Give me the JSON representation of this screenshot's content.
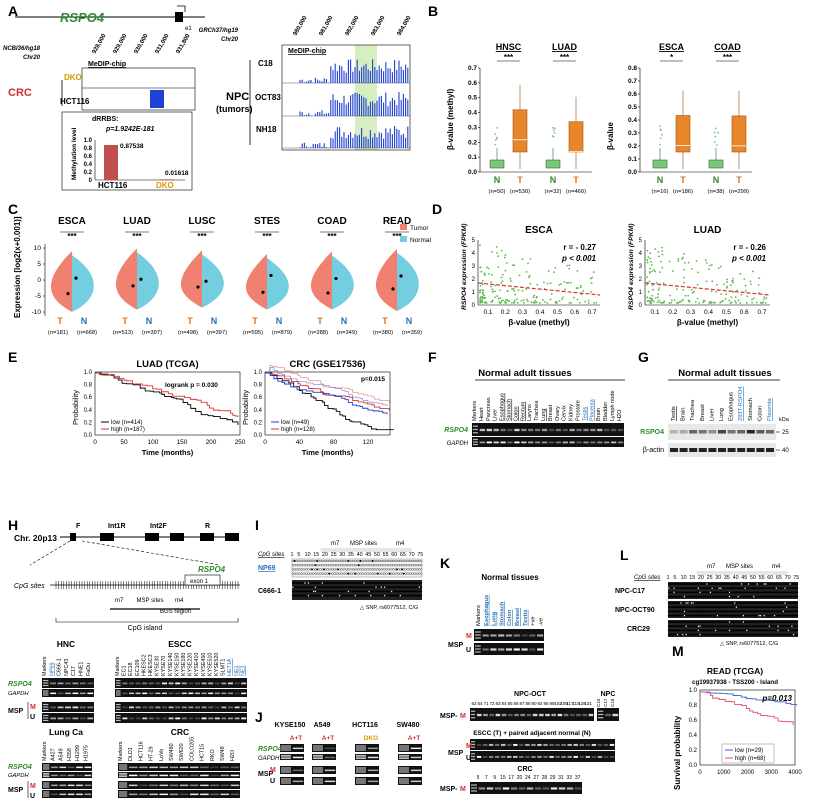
{
  "panels": [
    "A",
    "B",
    "C",
    "D",
    "E",
    "F",
    "G",
    "H",
    "I",
    "J",
    "K",
    "L",
    "M"
  ],
  "a": {
    "gene": "RSPO4",
    "exon": "e1",
    "build1": "NCBI36/hg18",
    "chr1": "Chr20",
    "coords1": [
      "928,000",
      "929,000",
      "930,000",
      "931,000",
      "931,800"
    ],
    "crc": "CRC",
    "dko": "DKO",
    "hct116": "HCT116",
    "medip1": "MeDIP-chip",
    "drrbs": "dRRBS:",
    "pval": "p=1.9242E-181",
    "ylabel": "Methylation level",
    "yticks": [
      "1.0",
      "0.8",
      "0.6",
      "0.4",
      "0.2",
      "0"
    ],
    "bar_labels": [
      "0.87538",
      "0.01618"
    ],
    "bar_names": [
      "HCT116",
      "DKO"
    ],
    "build2": "GRCh37/hg19",
    "chr2": "Chr20",
    "coords2": [
      "980,000",
      "981,000",
      "982,000",
      "983,000",
      "984,000"
    ],
    "medip2": "MeDIP-chip",
    "npc": "NPC",
    "tumors": "(tumors)",
    "samples": [
      "C18",
      "OCT83",
      "NH18"
    ]
  },
  "b": {
    "groups1": [
      "HNSC",
      "LUAD"
    ],
    "groups2": [
      "ESCA",
      "COAD"
    ],
    "sig1": [
      "***",
      "***"
    ],
    "sig2": [
      "*",
      "***"
    ],
    "ylabel1": "β-value (methyl)",
    "ylabel2": "β-value",
    "yticks1": [
      "0.0",
      "0.1",
      "0.2",
      "0.3",
      "0.4",
      "0.5",
      "0.6",
      "0.7"
    ],
    "yticks2": [
      "0.0",
      "0.1",
      "0.2",
      "0.3",
      "0.4",
      "0.5",
      "0.6",
      "0.7",
      "0.8"
    ],
    "nt": [
      "N",
      "T"
    ],
    "n1": [
      "(n=50)",
      "(n=530)",
      "(n=32)",
      "(n=460)"
    ],
    "n2": [
      "(n=16)",
      "(n=186)",
      "(n=38)",
      "(n=299)"
    ]
  },
  "c": {
    "cancers": [
      "ESCA",
      "LUAD",
      "LUSC",
      "STES",
      "COAD",
      "READ"
    ],
    "sig": "***",
    "ylabel": "Expression [log2(x+0.001)]",
    "yticks": [
      "10",
      "5",
      "0",
      "-5",
      "-10"
    ],
    "legend": [
      "Tumor",
      "Normal"
    ],
    "tn": [
      "T",
      "N"
    ],
    "n": [
      "(n=181)",
      "(n=668)",
      "(n=513)",
      "(n=397)",
      "(n=498)",
      "(n=397)",
      "(n=595)",
      "(n=879)",
      "(n=288)",
      "(n=349)",
      "(n=380)",
      "(n=359)"
    ]
  },
  "d": {
    "titles": [
      "ESCA",
      "LUAD"
    ],
    "r": [
      "r = - 0.27",
      "r = - 0.26"
    ],
    "p": "p < 0.001",
    "ylabel": "RSPO4 expression (FPKM)",
    "xlabel": "β-value (methyl)",
    "xticks": [
      "0.1",
      "0.2",
      "0.3",
      "0.4",
      "0.5",
      "0.6",
      "0.7"
    ],
    "yticks": [
      "0",
      "1",
      "2",
      "3",
      "4",
      "5"
    ]
  },
  "e": {
    "titles": [
      "LUAD (TCGA)",
      "CRC (GSE17536)"
    ],
    "pvals": [
      "logrank p = 0.030",
      "p=0.015"
    ],
    "ylabel": "Probability",
    "xlabel": "Time (months)",
    "xticks1": [
      "0",
      "50",
      "100",
      "150",
      "200",
      "250"
    ],
    "xticks2": [
      "0",
      "40",
      "80",
      "120"
    ],
    "yticks": [
      "0.0",
      "0.2",
      "0.4",
      "0.6",
      "0.8",
      "1.0"
    ],
    "legend1": [
      "low (n=414)",
      "high (n=187)"
    ],
    "legend2": [
      "low (n=49)",
      "high (n=128)"
    ]
  },
  "f": {
    "title": "Normal adult tissues",
    "lanes": [
      "Markers",
      "Heart",
      "Pancreas",
      "Liver",
      "Esophagus",
      "Stomach",
      "Colon",
      "Rectum",
      "Larynx",
      "Trachea",
      "Lung",
      "Breast",
      "Ovary",
      "Cervix",
      "Kidney",
      "Prostate",
      "Testis",
      "Placenta",
      "Brain",
      "Bladder",
      "Lymph node",
      "H2O"
    ],
    "rows": [
      "RSPO4",
      "GAPDH"
    ]
  },
  "g": {
    "title": "Normal adult tissues",
    "lanes": [
      "Testis",
      "Brain",
      "Trachea",
      "Breast",
      "Liver",
      "Lung",
      "Esophagus",
      "293T-RSPO4",
      "Stomach",
      "Colon",
      "Placenta"
    ],
    "kda": "kDa",
    "sizes": [
      "25",
      "40"
    ],
    "rows": [
      "RSPO4",
      "β-actin"
    ]
  },
  "h": {
    "chr": "Chr. 20p13",
    "primers": [
      "F",
      "Int1R",
      "Int2F",
      "R"
    ],
    "gene": "RSPO4",
    "exon": "exon 1",
    "cpg": "CpG sites",
    "m7": "m7",
    "msp": "MSP sites",
    "m4": "m4",
    "bgs": "BGS region",
    "island": "CpG island",
    "hnc": "HNC",
    "escc": "ESCC",
    "hnc_lanes": [
      "Markers",
      "NP69",
      "C666-1",
      "NPC43",
      "C17",
      "HNE1",
      "FaDu"
    ],
    "escc_lanes": [
      "Markers",
      "EC1",
      "EC18",
      "EC109",
      "HKESC2",
      "HKESC3",
      "KYSE30",
      "KYSE70",
      "KYSE140",
      "KYSE150",
      "KYSE180",
      "KYSE220",
      "KYSE410",
      "KYSE450",
      "KYSE510",
      "KYSE520",
      "SLMT1",
      "HET1A",
      "NE1",
      "NE3"
    ],
    "lung": "Lung Ca",
    "crc": "CRC",
    "lung_lanes": [
      "Markers",
      "A427",
      "A549",
      "H358",
      "H1299",
      "H1975"
    ],
    "crc_lanes": [
      "Markers",
      "DLD1",
      "HCT116",
      "HT-29",
      "LoVo",
      "SW480",
      "SW620",
      "COLO205",
      "HCT15",
      "RKO",
      "SW48",
      "H2O"
    ],
    "rows": [
      "RSPO4",
      "GAPDH"
    ],
    "msp_label": "MSP",
    "m": "M",
    "u": "U"
  },
  "i": {
    "cpg": "CpG sites",
    "sites": [
      "1",
      "5",
      "10",
      "15",
      "20",
      "25",
      "30",
      "35",
      "40",
      "45",
      "50",
      "55",
      "60",
      "65",
      "70",
      "75"
    ],
    "m7": "m7",
    "msp": "MSP sites",
    "m4": "m4",
    "lines": [
      "NP69",
      "C666-1"
    ],
    "snp": "△ SNP, rs6077512, C/G"
  },
  "j": {
    "lines": [
      "KYSE150",
      "A549",
      "HCT116",
      "SW480"
    ],
    "treat": [
      "A+T",
      "A+T",
      "DKO",
      "A+T"
    ],
    "rows": [
      "RSPO4",
      "GAPDH"
    ],
    "msp": "MSP",
    "m": "M",
    "u": "U"
  },
  "k": {
    "normal": "Normal tissues",
    "lanes": [
      "Markers",
      "Esophagus",
      "Lung",
      "Stomach",
      "Colon",
      "Breast",
      "Testis",
      "+ve",
      "-ve"
    ],
    "npc_oct": "NPC-OCT",
    "oct_ids": [
      "62",
      "64",
      "71",
      "72",
      "83",
      "84",
      "85",
      "86",
      "87",
      "88",
      "90",
      "92",
      "96",
      "99",
      "102",
      "106",
      "117",
      "119",
      "128",
      "131"
    ],
    "npc": "NPC",
    "npc_ids": [
      "C15",
      "C17",
      "C18"
    ],
    "escc": "ESCC (T) + paired adjacent normal (N)",
    "crc": "CRC",
    "crc_ids": [
      "5",
      "7",
      "9",
      "15",
      "17",
      "20",
      "24",
      "27",
      "28",
      "29",
      "31",
      "33",
      "37"
    ],
    "msp": "MSP",
    "msp_m": "MSP-",
    "m": "M",
    "u": "U"
  },
  "l": {
    "cpg": "CpG sites",
    "sites": [
      "1",
      "5",
      "10",
      "15",
      "20",
      "25",
      "30",
      "35",
      "40",
      "45",
      "50",
      "55",
      "60",
      "65",
      "70",
      "75"
    ],
    "m7": "m7",
    "msp": "MSP sites",
    "m4": "m4",
    "samples": [
      "NPC-C17",
      "NPC-OCT90",
      "CRC29"
    ],
    "snp": "△ SNP, rs6077512, C/G"
  },
  "m": {
    "title": "READ (TCGA)",
    "probe": "cg19937938 - TSS200 - Island",
    "p": "p=0.013",
    "ylabel": "Survival probability",
    "yticks": [
      "0.0",
      "0.2",
      "0.4",
      "0.6",
      "0.8",
      "1.0"
    ],
    "xticks": [
      "0",
      "1000",
      "2000",
      "3000",
      "4000"
    ],
    "legend": [
      "low (n=29)",
      "high (n=68)"
    ]
  }
}
